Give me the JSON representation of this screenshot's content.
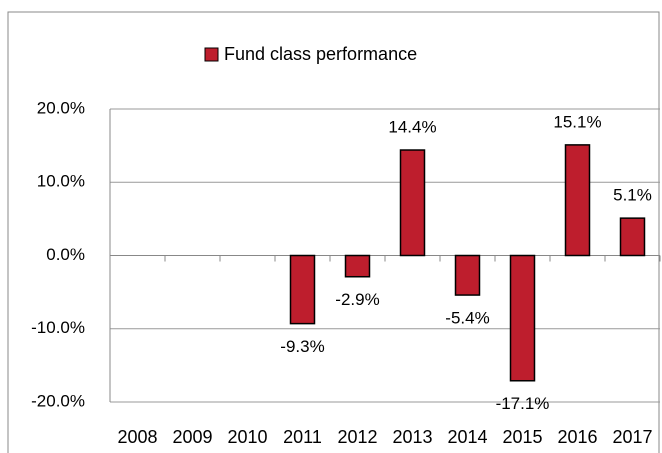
{
  "chart_data": {
    "type": "bar",
    "categories": [
      "2008",
      "2009",
      "2010",
      "2011",
      "2012",
      "2013",
      "2014",
      "2015",
      "2016",
      "2017"
    ],
    "series": [
      {
        "name": "Fund class performance",
        "color": "#be1e2d",
        "values": [
          null,
          null,
          null,
          -9.3,
          -2.9,
          14.4,
          -5.4,
          -17.1,
          15.1,
          5.1
        ],
        "value_labels": [
          null,
          null,
          null,
          "-9.3%",
          "-2.9%",
          "14.4%",
          "-5.4%",
          "-17.1%",
          "15.1%",
          "5.1%"
        ]
      }
    ],
    "ylim": [
      -20,
      20
    ],
    "yticks": [
      {
        "value": -20,
        "label": "-20.0%"
      },
      {
        "value": -10,
        "label": "-10.0%"
      },
      {
        "value": 0,
        "label": "0.0%"
      },
      {
        "value": 10,
        "label": "10.0%"
      },
      {
        "value": 20,
        "label": "20.0%"
      }
    ],
    "grid": true,
    "legend": "top"
  }
}
